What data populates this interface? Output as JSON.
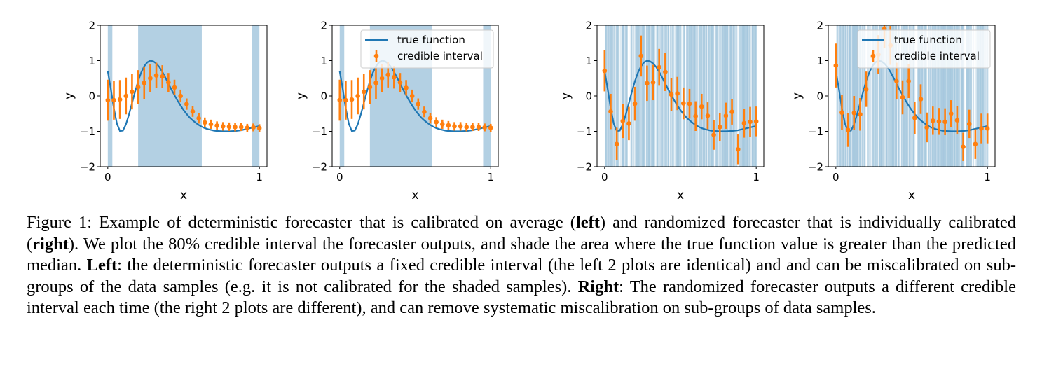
{
  "figure": {
    "caption_parts": [
      {
        "text": "Figure 1: Example of deterministic forecaster that is calibrated on average (",
        "bold": false
      },
      {
        "text": "left",
        "bold": true
      },
      {
        "text": ") and randomized forecaster that is individually calibrated (",
        "bold": false
      },
      {
        "text": "right",
        "bold": true
      },
      {
        "text": ").  We plot the 80% credible interval the forecaster outputs, and shade the area where the true function value is greater than the predicted median. ",
        "bold": false
      },
      {
        "text": "Left",
        "bold": true
      },
      {
        "text": ": the deterministic forecaster outputs a fixed credible interval (the left 2 plots are identical) and and can be miscalibrated on sub-groups of the data samples (e.g.  it is not calibrated for the shaded samples).  ",
        "bold": false
      },
      {
        "text": "Right",
        "bold": true
      },
      {
        "text": ": The randomized forecaster outputs a different credible interval each time (the right 2 plots are different), and can remove systematic miscalibration on sub-groups of data samples.",
        "bold": false
      }
    ]
  },
  "colors": {
    "true_function": "#1f77b4",
    "credible_interval": "#ff7f0e",
    "shade": "#a6c8de"
  },
  "chart_data": [
    {
      "type": "line+errorbar",
      "panel": "left-1",
      "xlabel": "x",
      "ylabel": "y",
      "xlim": [
        -0.05,
        1.05
      ],
      "ylim": [
        -2,
        2
      ],
      "xticks": [
        "0",
        "1"
      ],
      "xtick_values": [
        0,
        1
      ],
      "yticks": [
        "−2",
        "−1",
        "0",
        "1",
        "2"
      ],
      "ytick_values": [
        -2,
        -1,
        0,
        1,
        2
      ],
      "legend": null,
      "shade_mode": "bands",
      "shade_intervals": [
        [
          0.0,
          0.03
        ],
        [
          0.2,
          0.62
        ],
        [
          0.95,
          1.0
        ]
      ],
      "x": [
        0,
        0.04,
        0.08,
        0.12,
        0.16,
        0.2,
        0.24,
        0.28,
        0.32,
        0.36,
        0.4,
        0.44,
        0.48,
        0.52,
        0.56,
        0.6,
        0.64,
        0.68,
        0.72,
        0.76,
        0.8,
        0.84,
        0.88,
        0.92,
        0.96,
        1.0
      ],
      "median": [
        -0.12,
        -0.12,
        -0.1,
        0.0,
        0.12,
        0.25,
        0.37,
        0.5,
        0.58,
        0.55,
        0.38,
        0.24,
        0.0,
        -0.23,
        -0.44,
        -0.63,
        -0.75,
        -0.8,
        -0.84,
        -0.86,
        -0.87,
        -0.88,
        -0.88,
        -0.9,
        -0.89,
        -0.91
      ],
      "halfwidth": [
        0.58,
        0.55,
        0.55,
        0.52,
        0.5,
        0.48,
        0.45,
        0.4,
        0.36,
        0.32,
        0.27,
        0.22,
        0.18,
        0.16,
        0.15,
        0.15,
        0.14,
        0.13,
        0.12,
        0.12,
        0.12,
        0.12,
        0.11,
        0.11,
        0.11,
        0.11
      ]
    },
    {
      "type": "line+errorbar",
      "panel": "left-2",
      "xlabel": "x",
      "ylabel": "y",
      "xlim": [
        -0.05,
        1.05
      ],
      "ylim": [
        -2,
        2
      ],
      "xticks": [
        "0",
        "1"
      ],
      "xtick_values": [
        0,
        1
      ],
      "yticks": [
        "−2",
        "−1",
        "0",
        "1",
        "2"
      ],
      "ytick_values": [
        -2,
        -1,
        0,
        1,
        2
      ],
      "legend": {
        "location": "upper-right",
        "entries": [
          "true function",
          "credible interval"
        ]
      },
      "shade_mode": "bands",
      "shade_intervals": [
        [
          0.0,
          0.03
        ],
        [
          0.2,
          0.61
        ],
        [
          0.95,
          1.0
        ]
      ],
      "x": [
        0,
        0.04,
        0.08,
        0.12,
        0.16,
        0.2,
        0.24,
        0.28,
        0.32,
        0.36,
        0.4,
        0.44,
        0.48,
        0.52,
        0.56,
        0.6,
        0.64,
        0.68,
        0.72,
        0.76,
        0.8,
        0.84,
        0.88,
        0.92,
        0.96,
        1.0
      ],
      "median": [
        -0.12,
        -0.12,
        -0.1,
        0.0,
        0.12,
        0.25,
        0.37,
        0.5,
        0.6,
        0.53,
        0.38,
        0.23,
        0.0,
        -0.23,
        -0.45,
        -0.63,
        -0.74,
        -0.8,
        -0.83,
        -0.86,
        -0.86,
        -0.88,
        -0.88,
        -0.88,
        -0.89,
        -0.9
      ],
      "halfwidth": [
        0.58,
        0.55,
        0.55,
        0.52,
        0.5,
        0.48,
        0.45,
        0.4,
        0.36,
        0.32,
        0.27,
        0.22,
        0.18,
        0.16,
        0.15,
        0.15,
        0.14,
        0.13,
        0.12,
        0.12,
        0.12,
        0.12,
        0.11,
        0.11,
        0.11,
        0.11
      ]
    },
    {
      "type": "line+errorbar",
      "panel": "right-1",
      "xlabel": "x",
      "ylabel": "y",
      "xlim": [
        -0.05,
        1.05
      ],
      "ylim": [
        -2,
        2
      ],
      "xticks": [
        "0",
        "1"
      ],
      "xtick_values": [
        0,
        1
      ],
      "yticks": [
        "−2",
        "−1",
        "0",
        "1",
        "2"
      ],
      "ytick_values": [
        -2,
        -1,
        0,
        1,
        2
      ],
      "legend": null,
      "shade_mode": "dense",
      "x": [
        0,
        0.04,
        0.08,
        0.12,
        0.16,
        0.2,
        0.24,
        0.28,
        0.32,
        0.36,
        0.4,
        0.44,
        0.48,
        0.52,
        0.56,
        0.6,
        0.64,
        0.68,
        0.72,
        0.76,
        0.8,
        0.84,
        0.88,
        0.92,
        0.96,
        1.0
      ],
      "median": [
        0.71,
        -0.44,
        -1.36,
        -0.71,
        -0.78,
        -0.22,
        1.13,
        0.36,
        0.38,
        0.81,
        0.68,
        0.04,
        0.07,
        -0.21,
        -0.22,
        -0.57,
        -0.3,
        -0.56,
        -1.1,
        -0.88,
        -0.56,
        -0.45,
        -1.51,
        -0.77,
        -0.73,
        -0.72
      ],
      "halfwidth": [
        0.58,
        0.5,
        0.46,
        0.48,
        0.47,
        0.48,
        0.58,
        0.5,
        0.5,
        0.52,
        0.54,
        0.47,
        0.47,
        0.45,
        0.42,
        0.42,
        0.36,
        0.38,
        0.42,
        0.4,
        0.37,
        0.36,
        0.42,
        0.41,
        0.42,
        0.42
      ]
    },
    {
      "type": "line+errorbar",
      "panel": "right-2",
      "xlabel": "x",
      "ylabel": "y",
      "xlim": [
        -0.05,
        1.05
      ],
      "ylim": [
        -2,
        2
      ],
      "xticks": [
        "0",
        "1"
      ],
      "xtick_values": [
        0,
        1
      ],
      "yticks": [
        "−2",
        "−1",
        "0",
        "1",
        "2"
      ],
      "ytick_values": [
        -2,
        -1,
        0,
        1,
        2
      ],
      "legend": {
        "location": "upper-right",
        "entries": [
          "true function",
          "credible interval"
        ]
      },
      "shade_mode": "dense",
      "x": [
        0,
        0.04,
        0.08,
        0.12,
        0.16,
        0.2,
        0.24,
        0.28,
        0.32,
        0.36,
        0.4,
        0.44,
        0.48,
        0.52,
        0.56,
        0.6,
        0.64,
        0.68,
        0.72,
        0.76,
        0.8,
        0.84,
        0.88,
        0.92,
        0.96,
        1.0
      ],
      "median": [
        0.86,
        -0.47,
        -0.96,
        -0.48,
        -0.52,
        0.19,
        1.12,
        1.17,
        1.9,
        1.43,
        0.42,
        -0.04,
        0.42,
        -0.62,
        -0.09,
        -0.89,
        -0.7,
        -0.72,
        -0.73,
        -0.5,
        -0.69,
        -1.44,
        -0.79,
        -1.36,
        -0.92,
        -0.92
      ],
      "halfwidth": [
        0.62,
        0.5,
        0.48,
        0.48,
        0.46,
        0.5,
        0.12,
        0.55,
        0.55,
        0.55,
        0.52,
        0.48,
        0.48,
        0.45,
        0.42,
        0.42,
        0.4,
        0.38,
        0.38,
        0.38,
        0.4,
        0.4,
        0.4,
        0.42,
        0.42,
        0.42
      ]
    }
  ],
  "true_function": {
    "x": [
      0,
      0.02,
      0.04,
      0.06,
      0.08,
      0.1,
      0.12,
      0.14,
      0.16,
      0.18,
      0.2,
      0.22,
      0.24,
      0.26,
      0.28,
      0.3,
      0.32,
      0.34,
      0.36,
      0.38,
      0.4,
      0.42,
      0.44,
      0.46,
      0.48,
      0.5,
      0.52,
      0.54,
      0.56,
      0.58,
      0.6,
      0.62,
      0.64,
      0.66,
      0.68,
      0.7,
      0.72,
      0.74,
      0.76,
      0.78,
      0.8,
      0.82,
      0.84,
      0.86,
      0.88,
      0.9,
      0.92,
      0.94,
      0.96,
      0.98,
      1.0
    ],
    "y": [
      0.7,
      0.2,
      -0.35,
      -0.78,
      -0.99,
      -0.98,
      -0.8,
      -0.52,
      -0.2,
      0.12,
      0.42,
      0.66,
      0.84,
      0.95,
      1.0,
      0.98,
      0.92,
      0.82,
      0.68,
      0.52,
      0.35,
      0.18,
      0.02,
      -0.13,
      -0.27,
      -0.4,
      -0.51,
      -0.61,
      -0.69,
      -0.76,
      -0.82,
      -0.87,
      -0.91,
      -0.94,
      -0.96,
      -0.98,
      -0.99,
      -0.995,
      -1.0,
      -1.0,
      -1.0,
      -0.995,
      -0.99,
      -0.98,
      -0.97,
      -0.95,
      -0.93,
      -0.91,
      -0.89,
      -0.87,
      -0.85
    ]
  }
}
